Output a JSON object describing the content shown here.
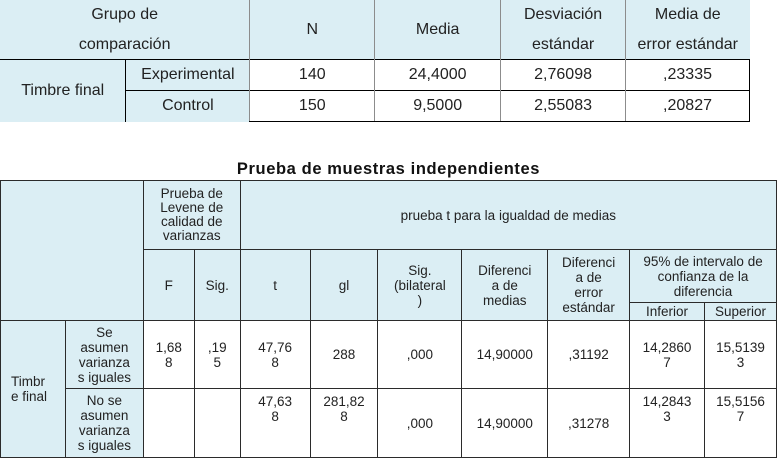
{
  "group_stats": {
    "headers": {
      "group": [
        "Grupo de",
        "comparación"
      ],
      "n": "N",
      "mean": "Media",
      "sd": [
        "Desviación",
        "estándar"
      ],
      "se": [
        "Media de",
        "error estándar"
      ]
    },
    "row_label": "Timbre final",
    "rows": [
      {
        "group": "Experimental",
        "n": "140",
        "mean": "24,4000",
        "sd": "2,76098",
        "se": ",23335"
      },
      {
        "group": "Control",
        "n": "150",
        "mean": "9,5000",
        "sd": "2,55083",
        "se": ",20827"
      }
    ]
  },
  "independent_test": {
    "title": "Prueba de muestras independientes",
    "levene_header": [
      "Prueba de",
      "Levene de",
      "calidad de",
      "varianzas"
    ],
    "ttest_header": "prueba t para la igualdad de medias",
    "cols": {
      "f": "F",
      "sig": "Sig.",
      "t": "t",
      "gl": "gl",
      "sig_bilateral": [
        "Sig.",
        "(bilateral",
        ")"
      ],
      "diff_means": [
        "Diferenci",
        "a de",
        "medias"
      ],
      "diff_se": [
        "Diferenci",
        "a de",
        "error",
        "estándar"
      ],
      "ci": [
        "95% de intervalo de",
        "confianza de la",
        "diferencia"
      ],
      "lower": "Inferior",
      "upper": "Superior"
    },
    "row_label": [
      "Timbr",
      "e final"
    ],
    "rows": [
      {
        "label": [
          "Se",
          "asumen",
          "varianza",
          "s iguales"
        ],
        "f": [
          "1,68",
          "8"
        ],
        "sig": [
          ",19",
          "5"
        ],
        "t": [
          "47,76",
          "8"
        ],
        "gl": [
          "288",
          ""
        ],
        "sig2": ",000",
        "diff": "14,90000",
        "se": ",31192",
        "lower": [
          "14,2860",
          "7"
        ],
        "upper": [
          "15,5139",
          "3"
        ]
      },
      {
        "label": [
          "No se",
          "asumen",
          "varianza",
          "s iguales"
        ],
        "f": [
          "",
          ""
        ],
        "sig": [
          "",
          ""
        ],
        "t": [
          "47,63",
          "8"
        ],
        "gl": [
          "281,82",
          "8"
        ],
        "sig2": ",000",
        "diff": "14,90000",
        "se": ",31278",
        "lower": [
          "14,2843",
          "3"
        ],
        "upper": [
          "15,5156",
          "7"
        ]
      }
    ]
  }
}
